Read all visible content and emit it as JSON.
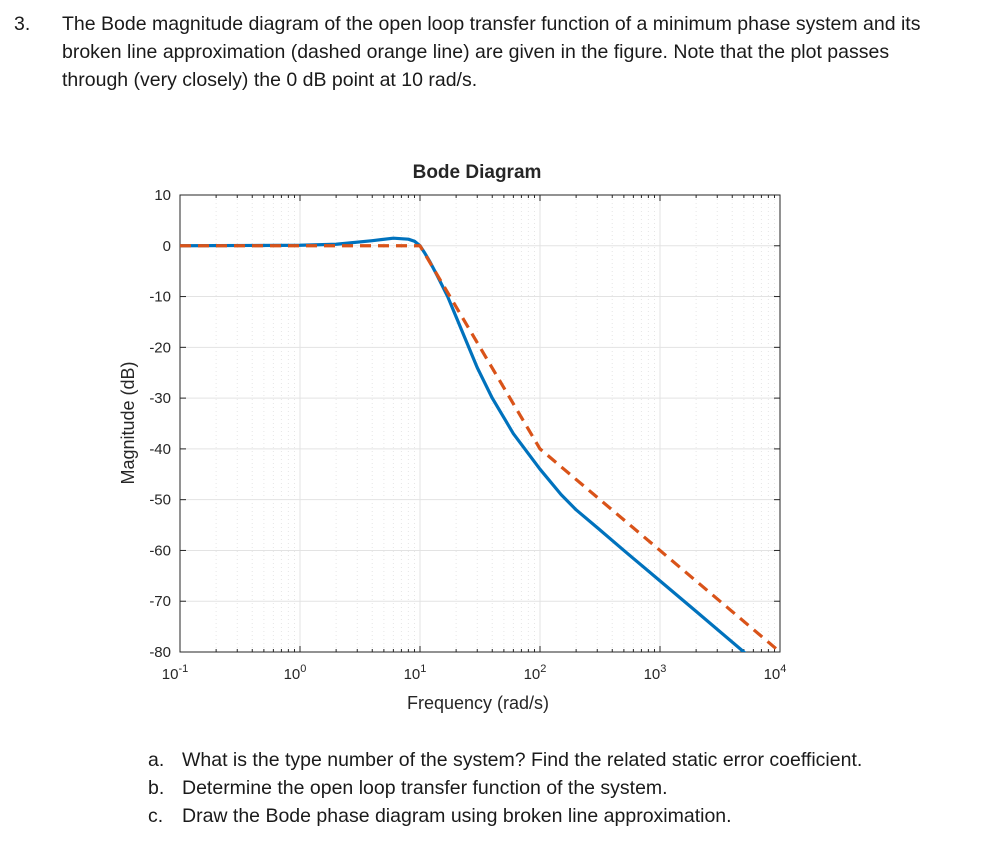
{
  "question": {
    "number": "3.",
    "text": "The Bode magnitude diagram of the open loop transfer function of a minimum phase system and its broken line approximation (dashed orange line) are given in the figure. Note that the plot passes through (very closely) the 0 dB point at 10 rad/s."
  },
  "chart_data": {
    "type": "line",
    "title": "Bode Diagram",
    "xlabel": "Frequency  (rad/s)",
    "ylabel": "Magnitude (dB)",
    "xscale": "log",
    "xlim": [
      0.1,
      10000
    ],
    "ylim": [
      -80,
      10
    ],
    "grid": true,
    "x_ticks": [
      {
        "base": "10",
        "exp": "-1",
        "value": 0.1
      },
      {
        "base": "10",
        "exp": "0",
        "value": 1
      },
      {
        "base": "10",
        "exp": "1",
        "value": 10
      },
      {
        "base": "10",
        "exp": "2",
        "value": 100
      },
      {
        "base": "10",
        "exp": "3",
        "value": 1000
      },
      {
        "base": "10",
        "exp": "4",
        "value": 10000
      }
    ],
    "y_ticks": [
      "10",
      "0",
      "-10",
      "-20",
      "-30",
      "-40",
      "-50",
      "-60",
      "-70",
      "-80"
    ],
    "series": [
      {
        "color": "#0072BD",
        "style": "solid",
        "x": [
          0.1,
          1,
          2,
          4,
          6,
          8,
          9,
          10,
          11,
          12,
          14,
          17,
          20,
          30,
          40,
          60,
          100,
          150,
          200,
          300,
          500,
          1000,
          2000,
          5000,
          10000
        ],
        "y": [
          0,
          0.1,
          0.3,
          1,
          1.5,
          1.3,
          0.9,
          0,
          -1.5,
          -3,
          -6,
          -10,
          -14,
          -24,
          -30,
          -37,
          -44,
          -49,
          -52,
          -55.5,
          -60,
          -66,
          -72,
          -80,
          -86
        ]
      },
      {
        "color": "#D95319",
        "style": "dashed",
        "x": [
          0.1,
          10,
          100,
          1000,
          10000
        ],
        "y": [
          0,
          0,
          -40,
          -60,
          -80
        ]
      }
    ]
  },
  "subquestions": [
    {
      "label": "a.",
      "text": "What is the type number of the system? Find the related static error coefficient."
    },
    {
      "label": "b.",
      "text": "Determine the open loop transfer function of the system."
    },
    {
      "label": "c.",
      "text": "Draw the Bode phase diagram using broken line approximation."
    }
  ]
}
